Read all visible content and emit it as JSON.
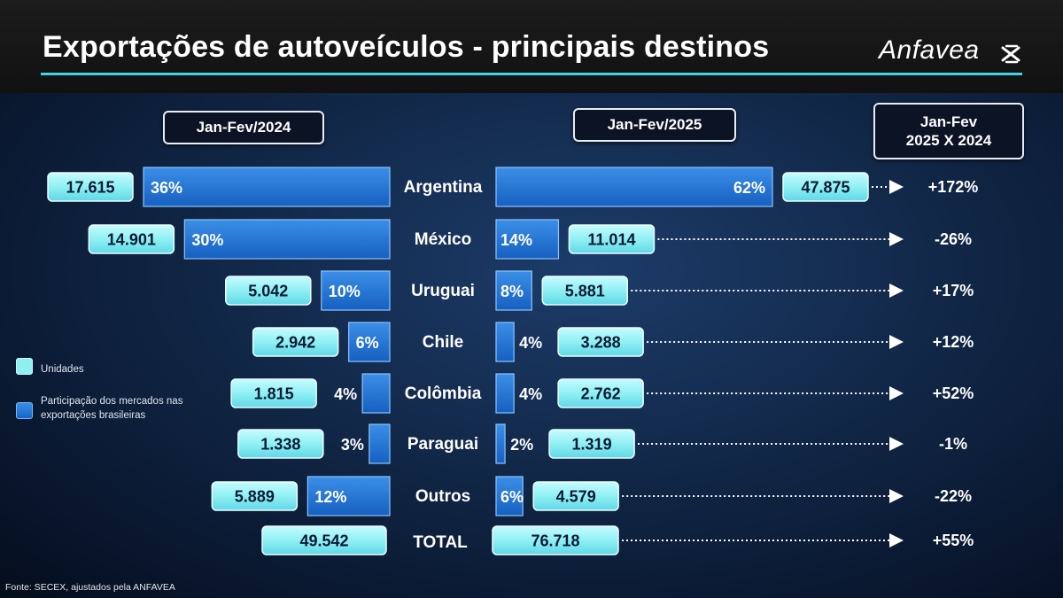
{
  "title": "Exportações de autoveículos - principais destinos",
  "logo": "Anfavea",
  "periods": {
    "left": "Jan-Fev/2024",
    "right": "Jan-Fev/2025",
    "compare_line1": "Jan-Fev",
    "compare_line2": "2025 X 2024"
  },
  "legend": {
    "units": "Unidades",
    "share": "Participação dos mercados nas exportações brasileiras"
  },
  "source": "Fonte: SECEX, ajustados pela ANFAVEA",
  "colors": {
    "units_box": "#8ff0f4",
    "share_bar": "#1e73d6",
    "accent_rule": "#3fd4e8"
  },
  "chart_data": {
    "type": "bar",
    "categories": [
      "Argentina",
      "México",
      "Uruguai",
      "Chile",
      "Colômbia",
      "Paraguai",
      "Outros"
    ],
    "series": [
      {
        "name": "Jan-Fev/2024",
        "units": [
          "17.615",
          "14.901",
          "5.042",
          "2.942",
          "1.815",
          "1.338",
          "5.889"
        ],
        "share": [
          36,
          30,
          10,
          6,
          4,
          3,
          12
        ]
      },
      {
        "name": "Jan-Fev/2025",
        "units": [
          "47.875",
          "11.014",
          "5.881",
          "3.288",
          "2.762",
          "1.319",
          "4.579"
        ],
        "share": [
          62,
          14,
          8,
          4,
          4,
          2,
          6
        ]
      }
    ],
    "change": [
      "+172%",
      "-26%",
      "+17%",
      "+12%",
      "+52%",
      "-1%",
      "-22%"
    ],
    "total": {
      "label": "TOTAL",
      "units_2024": "49.542",
      "units_2025": "76.718",
      "change": "+55%"
    }
  }
}
